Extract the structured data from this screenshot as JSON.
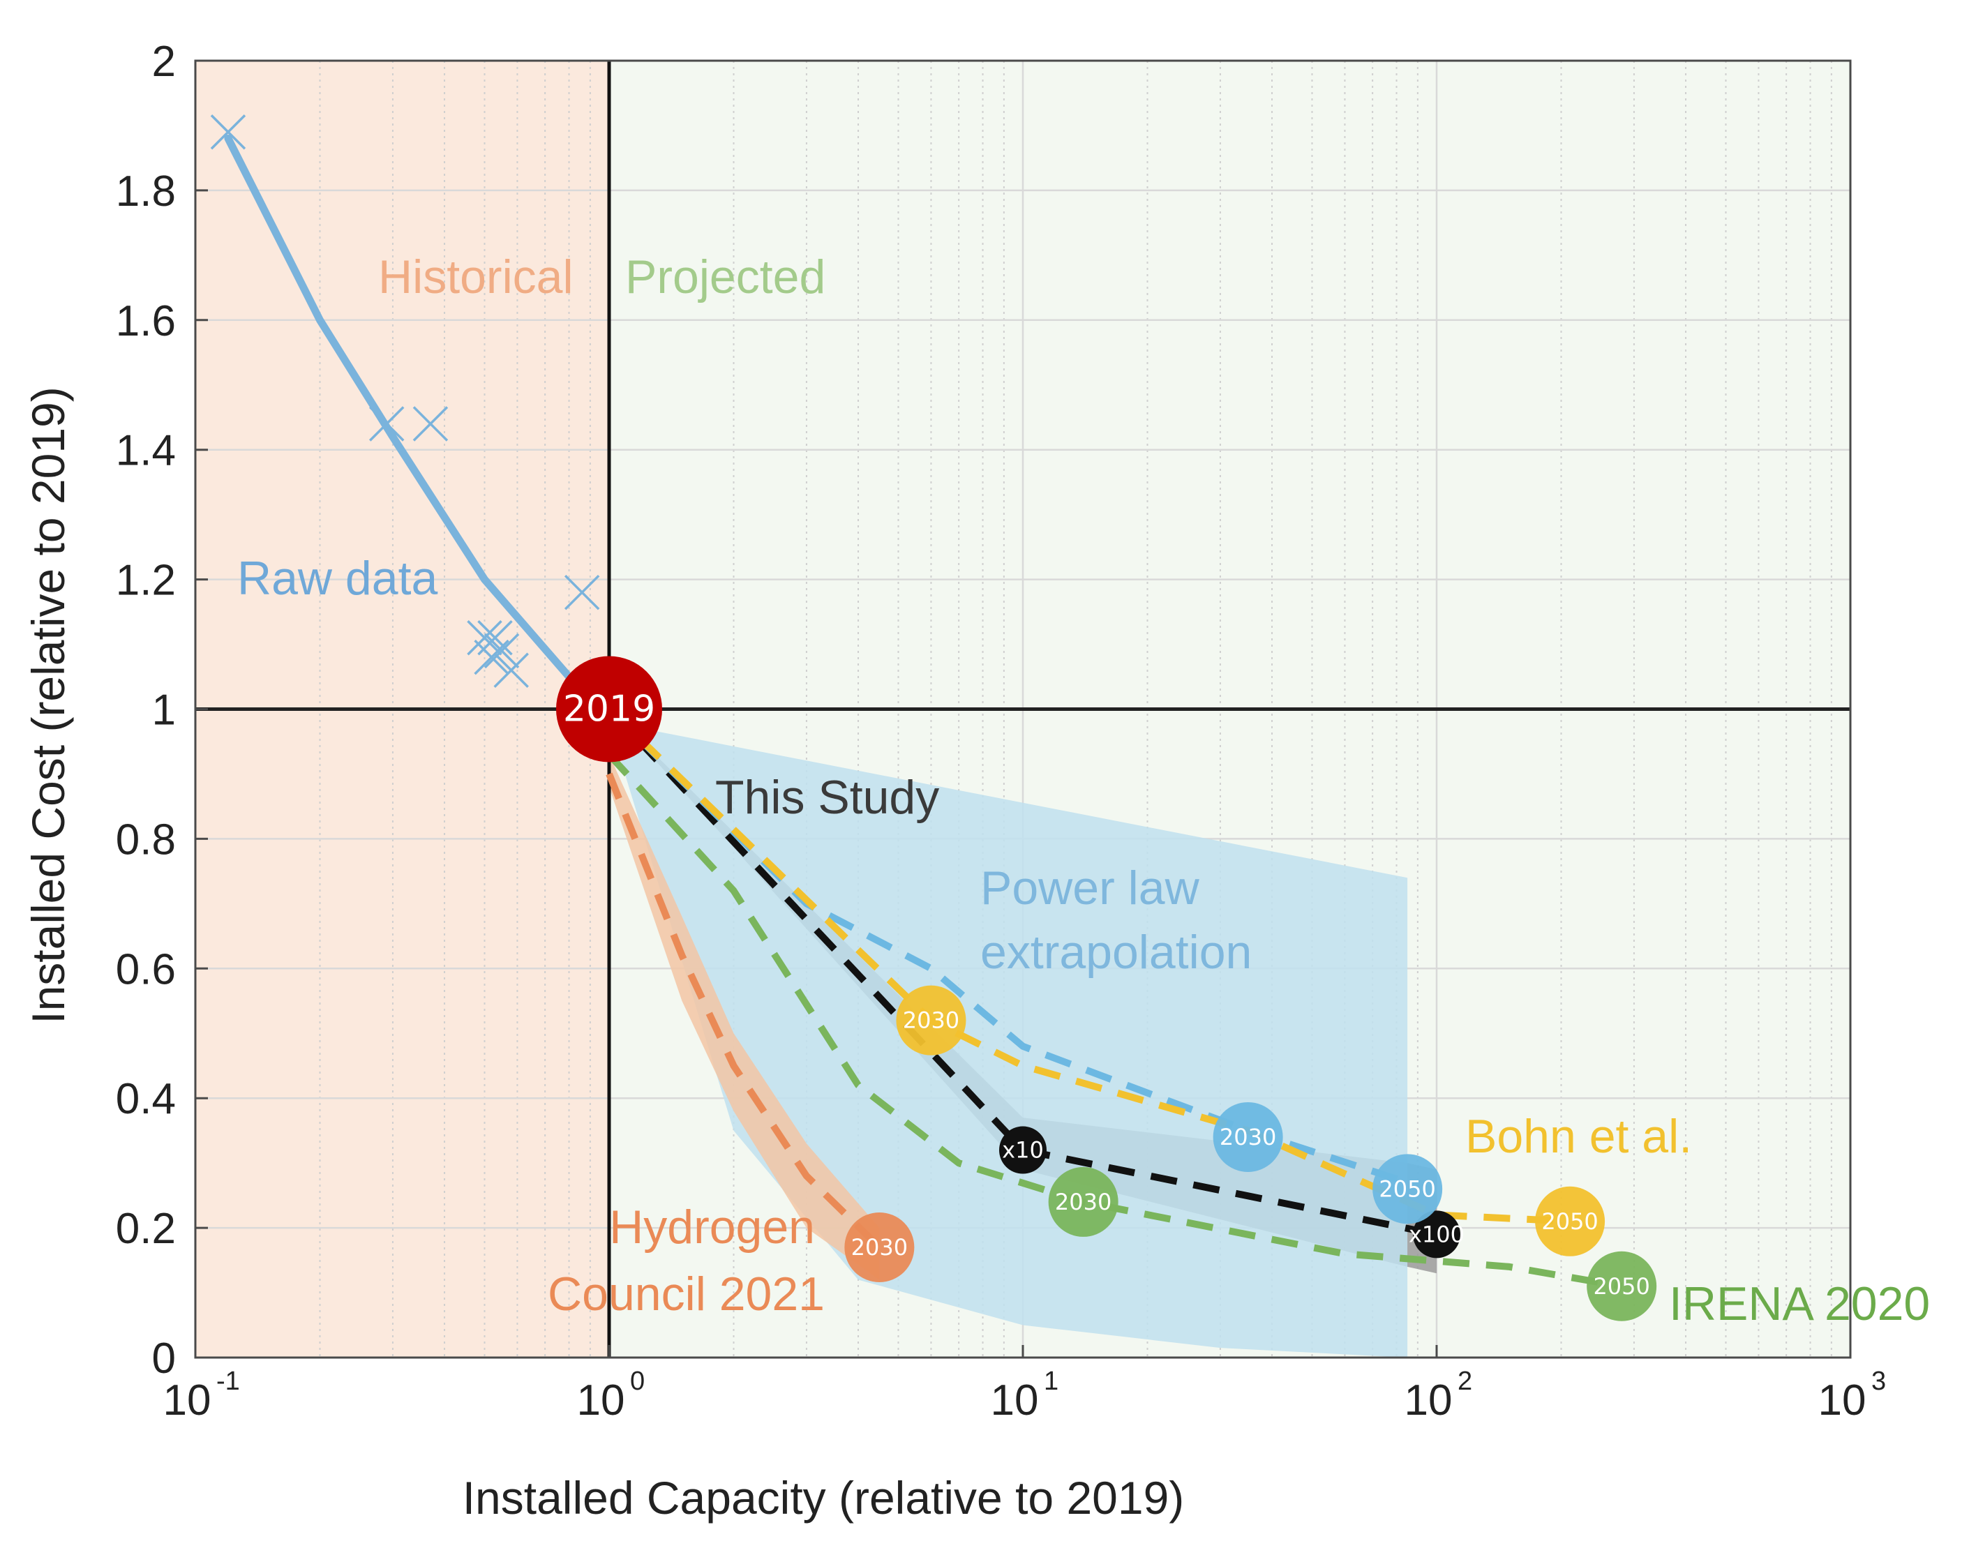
{
  "chart_data": {
    "type": "line",
    "xscale": "log",
    "xlim": [
      0.1,
      1000
    ],
    "ylim": [
      0,
      2
    ],
    "xlabel": "Installed Capacity (relative to 2019)",
    "ylabel": "Installed Cost (relative to 2019)",
    "x_ticks": [
      {
        "base": "10",
        "exp": "-1",
        "value": 0.1
      },
      {
        "base": "10",
        "exp": "0",
        "value": 1
      },
      {
        "base": "10",
        "exp": "1",
        "value": 10
      },
      {
        "base": "10",
        "exp": "2",
        "value": 100
      },
      {
        "base": "10",
        "exp": "3",
        "value": 1000
      }
    ],
    "y_ticks": [
      "0",
      "0.2",
      "0.4",
      "0.6",
      "0.8",
      "1",
      "1.2",
      "1.4",
      "1.6",
      "1.8",
      "2"
    ],
    "regions": [
      {
        "name": "Historical",
        "x_range": [
          0.1,
          1
        ],
        "color": "#fbe9dd"
      },
      {
        "name": "Projected",
        "x_range": [
          1,
          1000
        ],
        "color": "#f3f8f1"
      }
    ],
    "reference_lines": {
      "x": 1,
      "y": 1
    },
    "raw_data": {
      "label": "Raw data",
      "color": "#7ab3dc",
      "points": [
        [
          0.12,
          1.89
        ],
        [
          0.29,
          1.44
        ],
        [
          0.37,
          1.44
        ],
        [
          0.5,
          1.11
        ],
        [
          0.53,
          1.11
        ],
        [
          0.52,
          1.08
        ],
        [
          0.55,
          1.09
        ],
        [
          0.58,
          1.06
        ],
        [
          0.86,
          1.18
        ]
      ],
      "fit": [
        [
          0.12,
          1.88
        ],
        [
          0.2,
          1.6
        ],
        [
          0.3,
          1.42
        ],
        [
          0.5,
          1.2
        ],
        [
          0.8,
          1.05
        ],
        [
          1,
          1.0
        ]
      ]
    },
    "series": [
      {
        "name": "This Study",
        "color": "#111111",
        "dash": true,
        "points": [
          [
            1,
            1.0
          ],
          [
            10,
            0.32
          ],
          [
            100,
            0.19
          ]
        ],
        "band_upper": [
          [
            1,
            1.0
          ],
          [
            10,
            0.37
          ],
          [
            85,
            0.3
          ],
          [
            100,
            0.29
          ]
        ],
        "band_lower": [
          [
            1,
            1.0
          ],
          [
            10,
            0.29
          ],
          [
            85,
            0.14
          ],
          [
            100,
            0.13
          ]
        ],
        "band_color": "#9a9a9a",
        "markers": [
          {
            "x": 10,
            "y": 0.32,
            "label": "x10"
          },
          {
            "x": 100,
            "y": 0.19,
            "label": "x100"
          }
        ]
      },
      {
        "name": "Power law extrapolation",
        "color": "#6cb8e2",
        "dash": true,
        "points": [
          [
            1,
            1.0
          ],
          [
            3,
            0.7
          ],
          [
            6,
            0.6
          ],
          [
            10,
            0.48
          ],
          [
            35,
            0.35
          ],
          [
            85,
            0.27
          ]
        ],
        "band_upper": [
          [
            1,
            0.98
          ],
          [
            85,
            0.74
          ]
        ],
        "band_lower": [
          [
            1,
            0.98
          ],
          [
            2,
            0.35
          ],
          [
            4,
            0.12
          ],
          [
            10,
            0.05
          ],
          [
            30,
            0.015
          ],
          [
            85,
            0.0
          ]
        ],
        "band_color": "#bfe0ee",
        "markers": [
          {
            "x": 35,
            "y": 0.34,
            "label": "2030"
          },
          {
            "x": 85,
            "y": 0.26,
            "label": "2050"
          }
        ]
      },
      {
        "name": "Bohn et al.",
        "color": "#f2c12e",
        "dash": true,
        "points": [
          [
            1,
            1.0
          ],
          [
            6,
            0.52
          ],
          [
            10,
            0.45
          ],
          [
            35,
            0.35
          ],
          [
            100,
            0.22
          ],
          [
            210,
            0.21
          ]
        ],
        "markers": [
          {
            "x": 6,
            "y": 0.52,
            "label": "2030"
          },
          {
            "x": 210,
            "y": 0.21,
            "label": "2050"
          }
        ]
      },
      {
        "name": "IRENA 2020",
        "color": "#7ab55c",
        "dash": true,
        "points": [
          [
            1,
            0.93
          ],
          [
            2,
            0.72
          ],
          [
            4,
            0.42
          ],
          [
            7,
            0.3
          ],
          [
            14,
            0.24
          ],
          [
            60,
            0.16
          ],
          [
            150,
            0.14
          ],
          [
            280,
            0.11
          ]
        ],
        "markers": [
          {
            "x": 14,
            "y": 0.24,
            "label": "2030"
          },
          {
            "x": 280,
            "y": 0.11,
            "label": "2050"
          }
        ]
      },
      {
        "name": "Hydrogen Council 2021",
        "color": "#ea8a56",
        "dash": true,
        "points": [
          [
            1,
            0.9
          ],
          [
            1.5,
            0.62
          ],
          [
            2,
            0.45
          ],
          [
            3,
            0.28
          ],
          [
            4.5,
            0.17
          ]
        ],
        "band_upper": [
          [
            1,
            0.93
          ],
          [
            1.5,
            0.68
          ],
          [
            2,
            0.5
          ],
          [
            3,
            0.33
          ],
          [
            4.5,
            0.2
          ]
        ],
        "band_lower": [
          [
            1,
            0.88
          ],
          [
            1.5,
            0.55
          ],
          [
            2,
            0.38
          ],
          [
            3,
            0.2
          ],
          [
            4.5,
            0.12
          ]
        ],
        "band_color": "#f2c6a4",
        "markers": [
          {
            "x": 4.5,
            "y": 0.17,
            "label": "2030"
          }
        ]
      }
    ],
    "origin_marker": {
      "x": 1,
      "y": 1,
      "label": "2019",
      "color": "#c00000"
    },
    "annotations": [
      {
        "name": "historical",
        "text": "Historical",
        "color": "#f0ac84"
      },
      {
        "name": "projected",
        "text": "Projected",
        "color": "#a3cb8b"
      },
      {
        "name": "raw-data",
        "text": "Raw data",
        "color": "#6fa8d8"
      },
      {
        "name": "this-study",
        "text": "This Study",
        "color": "#3a3a3a"
      },
      {
        "name": "power-law-1",
        "text": "Power law",
        "color": "#7fb7dd"
      },
      {
        "name": "power-law-2",
        "text": "extrapolation",
        "color": "#7fb7dd"
      },
      {
        "name": "bohn",
        "text": "Bohn et al.",
        "color": "#f2c12e"
      },
      {
        "name": "hydrogen-1",
        "text": "Hydrogen",
        "color": "#ea8a56"
      },
      {
        "name": "hydrogen-2",
        "text": "Council 2021",
        "color": "#ea8a56"
      },
      {
        "name": "irena",
        "text": "IRENA 2020",
        "color": "#6bab4a"
      }
    ]
  }
}
